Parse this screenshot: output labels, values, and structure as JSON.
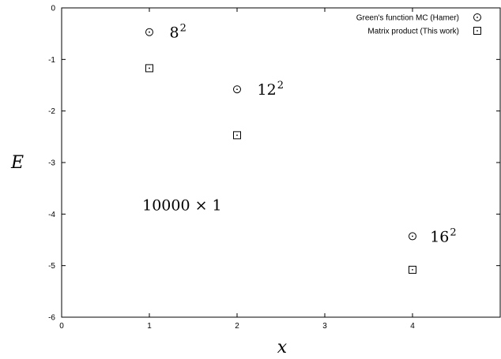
{
  "chart_data": {
    "type": "scatter",
    "xlabel": "x",
    "ylabel": "E",
    "xlim": [
      0,
      5
    ],
    "ylim": [
      -6,
      0
    ],
    "xticks": [
      "0",
      "1",
      "2",
      "3",
      "4"
    ],
    "yticks": [
      "0",
      "-1",
      "-2",
      "-3",
      "-4",
      "-5",
      "-6"
    ],
    "grid": false,
    "legend_position": "top-right",
    "series": [
      {
        "name": "Green's function MC (Hamer)",
        "marker": "circle",
        "points": [
          [
            1,
            -0.47
          ],
          [
            2,
            -1.58
          ],
          [
            4,
            -4.43
          ]
        ]
      },
      {
        "name": "Matrix product (This work)",
        "marker": "square",
        "points": [
          [
            1,
            -1.17
          ],
          [
            2,
            -2.47
          ],
          [
            4,
            -5.08
          ]
        ]
      }
    ],
    "annotations": [
      {
        "base": "8",
        "sup": "2",
        "x": 1.23,
        "y": -0.47
      },
      {
        "base": "12",
        "sup": "2",
        "x": 2.23,
        "y": -1.58
      },
      {
        "base": "16",
        "sup": "2",
        "x": 4.2,
        "y": -4.43
      },
      {
        "base": "10000 × 1",
        "sup": "",
        "x": 0.92,
        "y": -3.82
      }
    ]
  }
}
